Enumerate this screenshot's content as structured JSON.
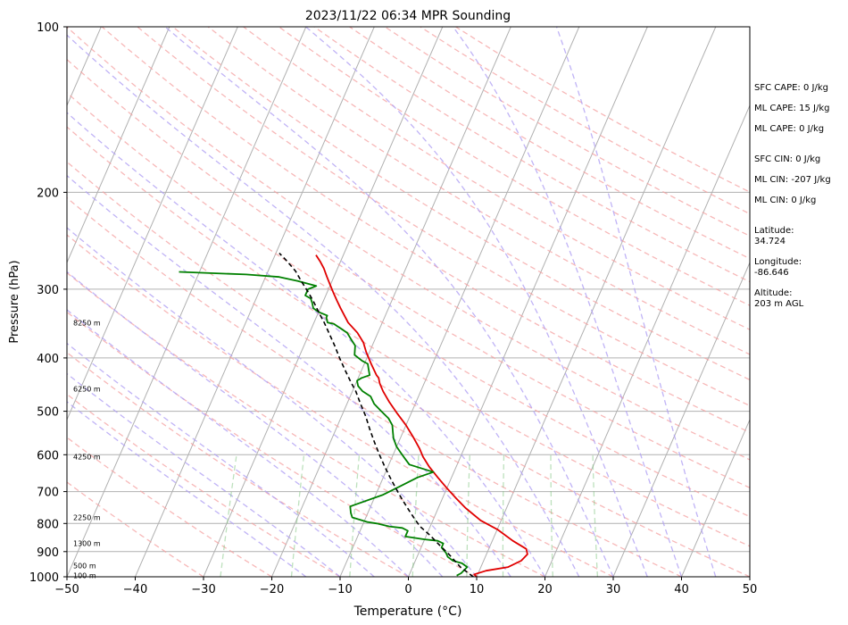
{
  "chart_data": {
    "type": "line",
    "title": "2023/11/22 06:34 MPR Sounding",
    "xlabel": "Temperature (°C)",
    "ylabel": "Pressure (hPa)",
    "xlim": [
      -50,
      50
    ],
    "ylim": [
      1000,
      100
    ],
    "yscale": "log",
    "grid": true,
    "x_ticks": [
      -50,
      -40,
      -30,
      -20,
      -10,
      0,
      10,
      20,
      30,
      40,
      50
    ],
    "y_ticks": [
      1000,
      900,
      800,
      700,
      600,
      500,
      400,
      300,
      200,
      100
    ],
    "series": [
      {
        "color": "#e00000",
        "points": [
          [
            10,
            1000
          ],
          [
            9.5,
            990
          ],
          [
            11,
            975
          ],
          [
            14,
            960
          ],
          [
            15.5,
            935
          ],
          [
            16,
            910
          ],
          [
            15.5,
            890
          ],
          [
            13,
            860
          ],
          [
            10,
            820
          ],
          [
            7,
            790
          ],
          [
            4,
            750
          ],
          [
            2,
            720
          ],
          [
            0,
            690
          ],
          [
            -2,
            660
          ],
          [
            -4,
            630
          ],
          [
            -5.5,
            605
          ],
          [
            -6.5,
            585
          ],
          [
            -8,
            560
          ],
          [
            -10,
            530
          ],
          [
            -12,
            505
          ],
          [
            -14,
            480
          ],
          [
            -15.5,
            460
          ],
          [
            -16.5,
            445
          ],
          [
            -17,
            435
          ],
          [
            -17.5,
            430
          ],
          [
            -19,
            410
          ],
          [
            -20.5,
            390
          ],
          [
            -21.5,
            375
          ],
          [
            -23,
            360
          ],
          [
            -25,
            345
          ],
          [
            -27,
            325
          ],
          [
            -28,
            315
          ],
          [
            -29,
            305
          ],
          [
            -30,
            295
          ],
          [
            -31,
            285
          ],
          [
            -32,
            275
          ],
          [
            -33,
            267
          ],
          [
            -34,
            260
          ]
        ]
      },
      {
        "color": "#008000",
        "points": [
          [
            7,
            995
          ],
          [
            7.5,
            985
          ],
          [
            8,
            960
          ],
          [
            7,
            945
          ],
          [
            5.5,
            935
          ],
          [
            4.5,
            920
          ],
          [
            4,
            905
          ],
          [
            3.5,
            895
          ],
          [
            3,
            885
          ],
          [
            3,
            870
          ],
          [
            2,
            860
          ],
          [
            0,
            855
          ],
          [
            -3,
            845
          ],
          [
            -3,
            825
          ],
          [
            -4,
            815
          ],
          [
            -6,
            810
          ],
          [
            -8,
            800
          ],
          [
            -9.5,
            795
          ],
          [
            -12,
            780
          ],
          [
            -12.5,
            765
          ],
          [
            -13,
            745
          ],
          [
            -9,
            710
          ],
          [
            -7,
            685
          ],
          [
            -5,
            660
          ],
          [
            -3,
            645
          ],
          [
            -7,
            625
          ],
          [
            -8,
            610
          ],
          [
            -9,
            595
          ],
          [
            -10,
            580
          ],
          [
            -11,
            560
          ],
          [
            -11.5,
            545
          ],
          [
            -12,
            530
          ],
          [
            -13,
            515
          ],
          [
            -14.5,
            500
          ],
          [
            -16,
            485
          ],
          [
            -17,
            470
          ],
          [
            -18.5,
            460
          ],
          [
            -19.5,
            450
          ],
          [
            -20,
            440
          ],
          [
            -19.5,
            435
          ],
          [
            -18.5,
            430
          ],
          [
            -19,
            420
          ],
          [
            -19.5,
            410
          ],
          [
            -20.5,
            405
          ],
          [
            -22,
            395
          ],
          [
            -22.5,
            380
          ],
          [
            -23.5,
            370
          ],
          [
            -24.5,
            360
          ],
          [
            -26,
            352
          ],
          [
            -27,
            347
          ],
          [
            -28,
            345
          ],
          [
            -28.5,
            338
          ],
          [
            -28.5,
            335
          ],
          [
            -30,
            330
          ],
          [
            -31,
            325
          ],
          [
            -31.5,
            318
          ],
          [
            -32,
            312
          ],
          [
            -33,
            308
          ],
          [
            -33,
            300
          ],
          [
            -32,
            296
          ],
          [
            -35,
            290
          ],
          [
            -38,
            285
          ],
          [
            -43,
            282
          ],
          [
            -53,
            279
          ]
        ]
      },
      {
        "color": "#000000",
        "style": "dashed",
        "points": [
          [
            9.5,
            1000
          ],
          [
            7,
            960
          ],
          [
            4.5,
            910
          ],
          [
            2.5,
            875
          ],
          [
            0.5,
            840
          ],
          [
            -1.5,
            810
          ],
          [
            -3,
            780
          ],
          [
            -4.5,
            750
          ],
          [
            -6,
            720
          ],
          [
            -7.5,
            690
          ],
          [
            -9,
            660
          ],
          [
            -10.5,
            630
          ],
          [
            -12,
            600
          ],
          [
            -13.5,
            570
          ],
          [
            -15,
            540
          ],
          [
            -16.5,
            510
          ],
          [
            -18,
            485
          ],
          [
            -19.5,
            460
          ],
          [
            -21,
            440
          ],
          [
            -22.5,
            420
          ],
          [
            -24,
            400
          ],
          [
            -25.5,
            380
          ],
          [
            -27,
            362
          ],
          [
            -28.5,
            345
          ],
          [
            -30,
            330
          ],
          [
            -31.5,
            315
          ],
          [
            -33,
            302
          ],
          [
            -34.5,
            290
          ],
          [
            -36,
            278
          ],
          [
            -38,
            266
          ],
          [
            -39.5,
            258
          ]
        ]
      }
    ],
    "isotherms": [
      -100,
      -90,
      -80,
      -70,
      -60,
      -50,
      -40,
      -30,
      -20,
      -10,
      0,
      10,
      20,
      30,
      40,
      50
    ],
    "dry_adiabats_thetaC": [
      -30,
      -20,
      -10,
      0,
      10,
      20,
      30,
      40,
      50,
      60,
      70,
      80,
      90,
      100,
      110,
      120,
      130,
      140,
      150,
      160,
      170,
      180,
      190,
      200
    ],
    "moist_adiabats_startC": [
      -15,
      -10,
      -5,
      0,
      5,
      10,
      15,
      20,
      25,
      30,
      35,
      40,
      45
    ],
    "mixing_ratio_gkg": [
      0.4,
      1,
      2,
      4,
      7,
      10,
      16,
      24
    ],
    "height_labels": [
      {
        "text": "100 m",
        "p": 995
      },
      {
        "text": "500 m",
        "p": 955
      },
      {
        "text": "1300 m",
        "p": 870
      },
      {
        "text": "2250 m",
        "p": 780
      },
      {
        "text": "4250 m",
        "p": 605
      },
      {
        "text": "6250 m",
        "p": 455
      },
      {
        "text": "8250 m",
        "p": 345
      }
    ]
  },
  "side": {
    "sfc_cape": "SFC CAPE: 0 J/kg",
    "ml_cape_1": "ML CAPE: 15 J/kg",
    "ml_cape_2": "ML CAPE: 0 J/kg",
    "sfc_cin": "SFC CIN: 0 J/kg",
    "ml_cin_1": "ML CIN: -207 J/kg",
    "ml_cin_2": "ML CIN: 0 J/kg",
    "lat_label": "Latitude:",
    "lat_value": "34.724",
    "lon_label": "Longitude:",
    "lon_value": "-86.646",
    "alt_label": "Altitude:",
    "alt_value": "203 m AGL"
  }
}
